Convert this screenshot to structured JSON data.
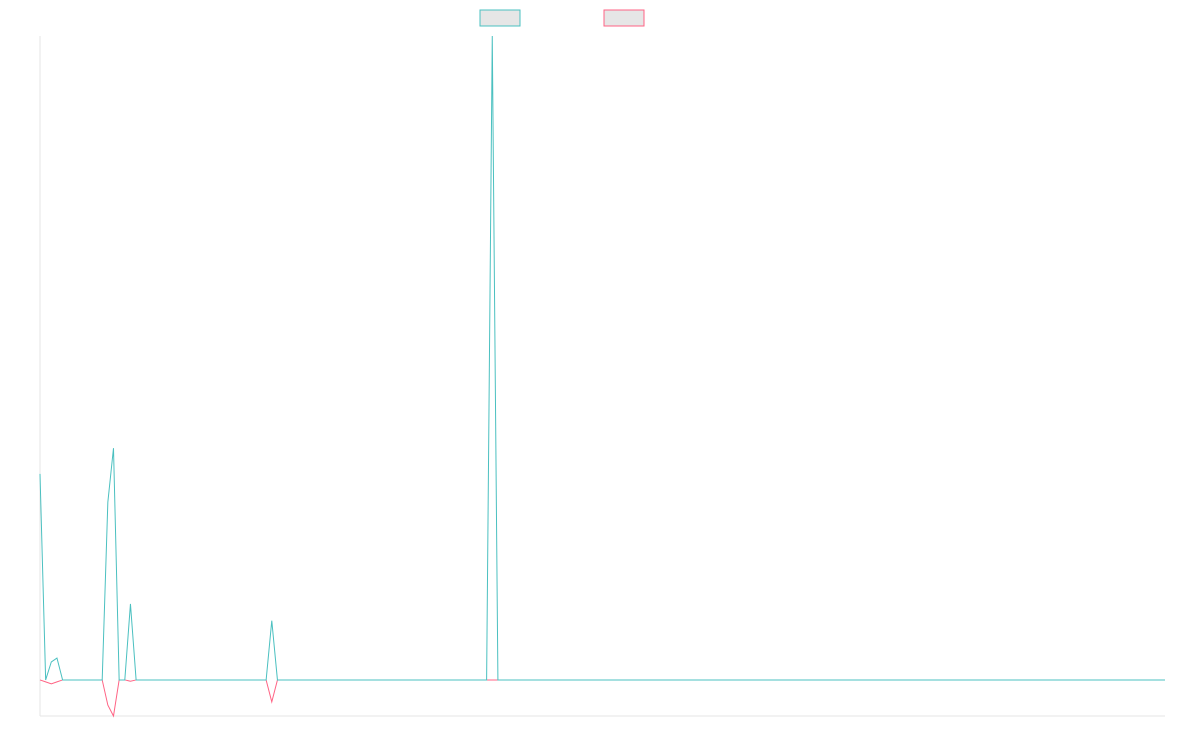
{
  "chart_data": {
    "type": "line",
    "ylim": [
      -5.6,
      100
    ],
    "series": [
      {
        "color": "#4bc0c0",
        "values": [
          32,
          0,
          2.8,
          3.4,
          0,
          0,
          0,
          0,
          0,
          0,
          0,
          0,
          27.6,
          36,
          0,
          0,
          11.8,
          0,
          0,
          0,
          0,
          0,
          0,
          0,
          0,
          0,
          0,
          0,
          0,
          0,
          0,
          0,
          0,
          0,
          0,
          0,
          0,
          0,
          0,
          0,
          0,
          9.2,
          0,
          0,
          0,
          0,
          0,
          0,
          0,
          0,
          0,
          0,
          0,
          0,
          0,
          0,
          0,
          0,
          0,
          0,
          0,
          0,
          0,
          0,
          0,
          0,
          0,
          0,
          0,
          0,
          0,
          0,
          0,
          0,
          0,
          0,
          0,
          0,
          0,
          0,
          100,
          0,
          0,
          0,
          0,
          0,
          0,
          0,
          0,
          0,
          0,
          0,
          0,
          0,
          0,
          0,
          0,
          0,
          0,
          0,
          0,
          0,
          0,
          0,
          0,
          0,
          0,
          0,
          0,
          0,
          0,
          0,
          0,
          0,
          0,
          0,
          0,
          0,
          0,
          0,
          0,
          0,
          0,
          0,
          0,
          0,
          0,
          0,
          0,
          0,
          0,
          0,
          0,
          0,
          0,
          0,
          0,
          0,
          0,
          0,
          0,
          0,
          0,
          0,
          0,
          0,
          0,
          0,
          0,
          0,
          0,
          0,
          0,
          0,
          0,
          0,
          0,
          0,
          0,
          0,
          0,
          0,
          0,
          0,
          0,
          0,
          0,
          0,
          0,
          0,
          0,
          0,
          0,
          0,
          0,
          0,
          0,
          0,
          0,
          0,
          0,
          0,
          0,
          0,
          0,
          0,
          0,
          0,
          0,
          0,
          0,
          0,
          0,
          0,
          0,
          0,
          0,
          0,
          0,
          0
        ]
      },
      {
        "color": "#ff6384",
        "values": [
          0,
          -0.3,
          -0.6,
          -0.3,
          0,
          0,
          0,
          0,
          0,
          0,
          0,
          0,
          -3.9,
          -5.6,
          0,
          0,
          -0.2,
          0,
          0,
          0,
          0,
          0,
          0,
          0,
          0,
          0,
          0,
          0,
          0,
          0,
          0,
          0,
          0,
          0,
          0,
          0,
          0,
          0,
          0,
          0,
          0,
          -3.4,
          0,
          0,
          0,
          0,
          0,
          0,
          0,
          0,
          0,
          0,
          0,
          0,
          0,
          0,
          0,
          0,
          0,
          0,
          0,
          0,
          0,
          0,
          0,
          0,
          0,
          0,
          0,
          0,
          0,
          0,
          0,
          0,
          0,
          0,
          0,
          0,
          0,
          0,
          0,
          0,
          0,
          0,
          0,
          0,
          0,
          0,
          0,
          0,
          0,
          0,
          0,
          0,
          0,
          0,
          0,
          0,
          0,
          0,
          0,
          0,
          0,
          0,
          0,
          0,
          0,
          0,
          0,
          0,
          0,
          0,
          0,
          0,
          0,
          0,
          0,
          0,
          0,
          0,
          0,
          0,
          0,
          0,
          0,
          0,
          0,
          0,
          0,
          0,
          0,
          0,
          0,
          0,
          0,
          0,
          0,
          0,
          0,
          0,
          0,
          0,
          0,
          0,
          0,
          0,
          0,
          0,
          0,
          0,
          0,
          0,
          0,
          0,
          0,
          0,
          0,
          0,
          0,
          0,
          0,
          0,
          0,
          0,
          0,
          0,
          0,
          0,
          0,
          0,
          0,
          0,
          0,
          0,
          0,
          0,
          0,
          0,
          0,
          0,
          0,
          0,
          0,
          0,
          0,
          0,
          0,
          0,
          0,
          0,
          0,
          0,
          0,
          0,
          0,
          0,
          0,
          0,
          0,
          0
        ]
      }
    ]
  }
}
